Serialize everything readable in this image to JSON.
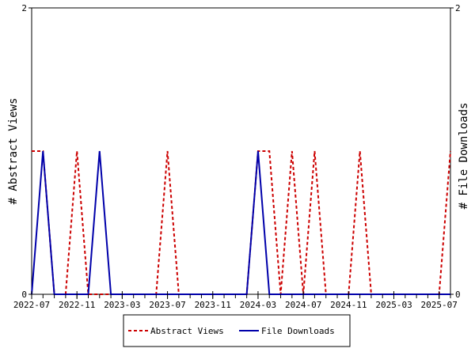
{
  "chart_data": {
    "type": "line",
    "title": "",
    "ylabel_left": "# Abstract Views",
    "ylabel_right": "# File Downloads",
    "x_ticks": [
      "2022-07",
      "2022-11",
      "2023-03",
      "2023-07",
      "2023-11",
      "2024-03",
      "2024-07",
      "2024-11",
      "2025-03",
      "2025-07"
    ],
    "y_ticks": [
      "0",
      "2"
    ],
    "ylim": [
      0,
      2
    ],
    "xlim": [
      "2022-07",
      "2025-08"
    ],
    "grid": false,
    "legend_position": "bottom",
    "series": [
      {
        "name": "Abstract Views",
        "color": "#cc0000",
        "style": "dashed",
        "points": [
          [
            "2022-07",
            1
          ],
          [
            "2022-08",
            1
          ],
          [
            "2022-09",
            0
          ],
          [
            "2022-10",
            0
          ],
          [
            "2022-11",
            1
          ],
          [
            "2022-12",
            0
          ],
          [
            "2023-01",
            0
          ],
          [
            "2023-02",
            0
          ],
          [
            "2023-03",
            0
          ],
          [
            "2023-04",
            0
          ],
          [
            "2023-05",
            0
          ],
          [
            "2023-06",
            0
          ],
          [
            "2023-07",
            1
          ],
          [
            "2023-08",
            0
          ],
          [
            "2023-09",
            0
          ],
          [
            "2023-10",
            0
          ],
          [
            "2023-11",
            0
          ],
          [
            "2023-12",
            0
          ],
          [
            "2024-01",
            0
          ],
          [
            "2024-02",
            0
          ],
          [
            "2024-03",
            1
          ],
          [
            "2024-04",
            1
          ],
          [
            "2024-05",
            0
          ],
          [
            "2024-06",
            1
          ],
          [
            "2024-07",
            0
          ],
          [
            "2024-08",
            1
          ],
          [
            "2024-09",
            0
          ],
          [
            "2024-10",
            0
          ],
          [
            "2024-11",
            0
          ],
          [
            "2024-12",
            1
          ],
          [
            "2025-01",
            0
          ],
          [
            "2025-02",
            0
          ],
          [
            "2025-03",
            0
          ],
          [
            "2025-04",
            0
          ],
          [
            "2025-05",
            0
          ],
          [
            "2025-06",
            0
          ],
          [
            "2025-07",
            0
          ],
          [
            "2025-08",
            1
          ]
        ]
      },
      {
        "name": "File Downloads",
        "color": "#0000aa",
        "style": "solid",
        "points": [
          [
            "2022-07",
            0
          ],
          [
            "2022-08",
            1
          ],
          [
            "2022-09",
            0
          ],
          [
            "2022-10",
            0
          ],
          [
            "2022-11",
            0
          ],
          [
            "2022-12",
            0
          ],
          [
            "2023-01",
            1
          ],
          [
            "2023-02",
            0
          ],
          [
            "2023-03",
            0
          ],
          [
            "2023-04",
            0
          ],
          [
            "2023-05",
            0
          ],
          [
            "2023-06",
            0
          ],
          [
            "2023-07",
            0
          ],
          [
            "2023-08",
            0
          ],
          [
            "2023-09",
            0
          ],
          [
            "2023-10",
            0
          ],
          [
            "2023-11",
            0
          ],
          [
            "2023-12",
            0
          ],
          [
            "2024-01",
            0
          ],
          [
            "2024-02",
            0
          ],
          [
            "2024-03",
            1
          ],
          [
            "2024-04",
            0
          ],
          [
            "2024-05",
            0
          ],
          [
            "2024-06",
            0
          ],
          [
            "2024-07",
            0
          ],
          [
            "2024-08",
            0
          ],
          [
            "2024-09",
            0
          ],
          [
            "2024-10",
            0
          ],
          [
            "2024-11",
            0
          ],
          [
            "2024-12",
            0
          ],
          [
            "2025-01",
            0
          ],
          [
            "2025-02",
            0
          ],
          [
            "2025-03",
            0
          ],
          [
            "2025-04",
            0
          ],
          [
            "2025-05",
            0
          ],
          [
            "2025-06",
            0
          ],
          [
            "2025-07",
            0
          ],
          [
            "2025-08",
            0
          ]
        ]
      }
    ]
  }
}
